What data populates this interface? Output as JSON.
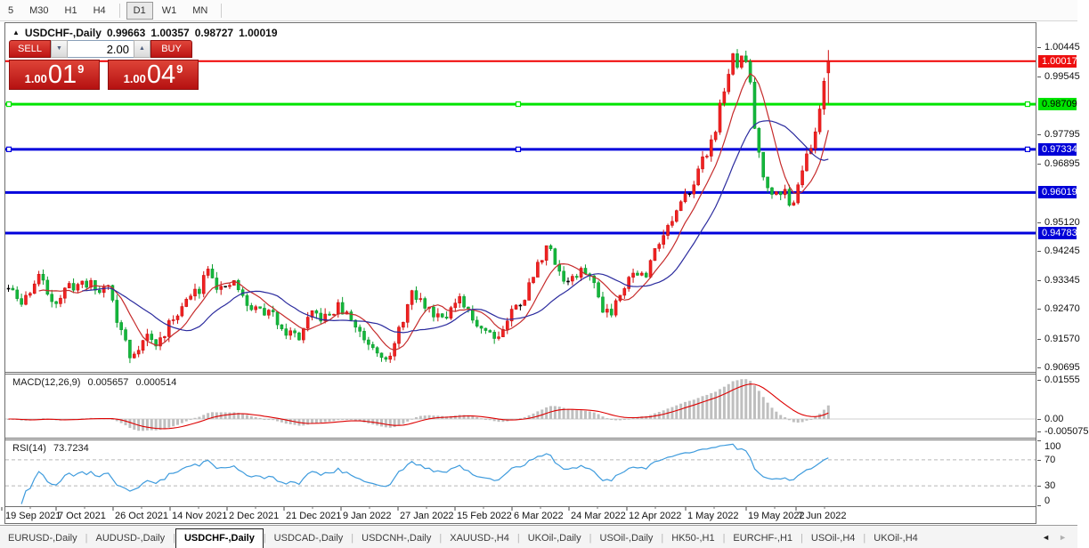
{
  "toolbar": {
    "group1": [
      "5",
      "M30",
      "H1",
      "H4"
    ],
    "group2": [
      "D1",
      "W1",
      "MN"
    ],
    "active": "D1"
  },
  "chart": {
    "title": {
      "collapse_icon": "▲",
      "symbol": "USDCHF-,Daily",
      "open": "0.99663",
      "high": "1.00357",
      "low": "0.98727",
      "close": "1.00019"
    },
    "trade_panel": {
      "sell_label": "SELL",
      "buy_label": "BUY",
      "volume": "2.00",
      "spinner_down": "▼",
      "spinner_up": "▲",
      "sell_price": {
        "prefix": "1.00",
        "big": "01",
        "sup": "9"
      },
      "buy_price": {
        "prefix": "1.00",
        "big": "04",
        "sup": "9"
      }
    }
  },
  "price_scale": {
    "ticks": [
      {
        "label": "1.00445",
        "price": 1.00445
      },
      {
        "label": "0.99545",
        "price": 0.99545
      },
      {
        "label": "0.97795",
        "price": 0.97795
      },
      {
        "label": "0.96895",
        "price": 0.96895
      },
      {
        "label": "0.95120",
        "price": 0.9512
      },
      {
        "label": "0.94245",
        "price": 0.94245
      },
      {
        "label": "0.93345",
        "price": 0.93345
      },
      {
        "label": "0.92470",
        "price": 0.9247
      },
      {
        "label": "0.91570",
        "price": 0.9157
      },
      {
        "label": "0.90695",
        "price": 0.90695
      }
    ],
    "tags": [
      {
        "label": "1.00017",
        "price": 1.00017,
        "bg": "#ee0f0f",
        "fg": "#ffffff"
      },
      {
        "label": "0.98709",
        "price": 0.98709,
        "bg": "#00e400",
        "fg": "#000000"
      },
      {
        "label": "0.97334",
        "price": 0.97334,
        "bg": "#0000d8",
        "fg": "#ffffff"
      },
      {
        "label": "0.96019",
        "price": 0.96019,
        "bg": "#0000d8",
        "fg": "#ffffff"
      },
      {
        "label": "0.94783",
        "price": 0.94783,
        "bg": "#0000d8",
        "fg": "#ffffff"
      }
    ]
  },
  "macd_panel": {
    "name": "MACD(12,26,9)",
    "value": "0.005657",
    "signal_value": "0.000514"
  },
  "rsi_panel": {
    "name": "RSI(14)",
    "value": "73.7234"
  },
  "tabs": {
    "items": [
      "EURUSD-,Daily",
      "AUDUSD-,Daily",
      "USDCHF-,Daily",
      "USDCAD-,Daily",
      "USDCNH-,Daily",
      "XAUUSD-,H4",
      "UKOil-,Daily",
      "USOil-,Daily",
      "HK50-,H1",
      "EURCHF-,H1",
      "USOil-,H4",
      "UKOil-,H4"
    ],
    "active": "USDCHF-,Daily",
    "prev_arrow": "◄",
    "next_arrow": "►"
  },
  "colors": {
    "bull_fill": "#f12222",
    "bull_stroke": "#cf0f0f",
    "bear_fill": "#14b83c",
    "bear_stroke": "#0c9c2e",
    "doji": "#000000",
    "ma_fast": "#c62b2b",
    "ma_slow": "#2b2b9e",
    "level_red": "#f00000",
    "level_green": "#00e400",
    "level_blue": "#0000dc",
    "macd_hist": "#bfbfbf",
    "macd_signal": "#dd0000",
    "rsi_line": "#3e9bdd",
    "rsi_level": "#b8b8b8",
    "separator": "#6e6e6e"
  },
  "chart_data": {
    "type": "candlestick",
    "symbol": "USDCHF-",
    "timeframe": "Daily",
    "current_bar": {
      "open": 0.99663,
      "high": 1.00357,
      "low": 0.98727,
      "close": 1.00019
    },
    "bar_count": 190,
    "ylim": [
      0.90586,
      1.01122
    ],
    "y_ticks": [
      1.00445,
      0.99545,
      0.97795,
      0.96895,
      0.9512,
      0.94245,
      0.93345,
      0.9247,
      0.9157,
      0.90695
    ],
    "close_path_anchors": [
      [
        0,
        0.931
      ],
      [
        3,
        0.9262
      ],
      [
        5,
        0.9305
      ],
      [
        7,
        0.935
      ],
      [
        9,
        0.9298
      ],
      [
        11,
        0.927
      ],
      [
        14,
        0.9315
      ],
      [
        18,
        0.9328
      ],
      [
        21,
        0.93
      ],
      [
        23,
        0.933
      ],
      [
        25,
        0.921
      ],
      [
        27,
        0.915
      ],
      [
        28,
        0.9098
      ],
      [
        30,
        0.9135
      ],
      [
        32,
        0.9167
      ],
      [
        34,
        0.9135
      ],
      [
        36,
        0.9175
      ],
      [
        39,
        0.924
      ],
      [
        42,
        0.9285
      ],
      [
        44,
        0.931
      ],
      [
        46,
        0.9385
      ],
      [
        48,
        0.932
      ],
      [
        50,
        0.93
      ],
      [
        52,
        0.9333
      ],
      [
        55,
        0.9255
      ],
      [
        58,
        0.9245
      ],
      [
        61,
        0.9228
      ],
      [
        64,
        0.918
      ],
      [
        67,
        0.9162
      ],
      [
        70,
        0.923
      ],
      [
        73,
        0.9218
      ],
      [
        76,
        0.9253
      ],
      [
        79,
        0.9215
      ],
      [
        82,
        0.9158
      ],
      [
        85,
        0.9125
      ],
      [
        88,
        0.9095
      ],
      [
        91,
        0.922
      ],
      [
        93,
        0.929
      ],
      [
        95,
        0.927
      ],
      [
        98,
        0.9235
      ],
      [
        101,
        0.9235
      ],
      [
        104,
        0.927
      ],
      [
        107,
        0.9215
      ],
      [
        110,
        0.9185
      ],
      [
        113,
        0.9165
      ],
      [
        116,
        0.924
      ],
      [
        119,
        0.9285
      ],
      [
        122,
        0.938
      ],
      [
        124,
        0.944
      ],
      [
        126,
        0.9395
      ],
      [
        128,
        0.9335
      ],
      [
        131,
        0.9345
      ],
      [
        133,
        0.9368
      ],
      [
        135,
        0.932
      ],
      [
        137,
        0.9253
      ],
      [
        139,
        0.924
      ],
      [
        141,
        0.9302
      ],
      [
        143,
        0.9345
      ],
      [
        145,
        0.936
      ],
      [
        147,
        0.934
      ],
      [
        149,
        0.944
      ],
      [
        152,
        0.9495
      ],
      [
        155,
        0.956
      ],
      [
        158,
        0.964
      ],
      [
        161,
        0.9725
      ],
      [
        163,
        0.98
      ],
      [
        165,
        0.992
      ],
      [
        167,
        1.001
      ],
      [
        168,
        0.998
      ],
      [
        169,
        1.0025
      ],
      [
        170,
        0.999
      ],
      [
        171,
        0.994
      ],
      [
        172,
        0.98
      ],
      [
        174,
        0.966
      ],
      [
        176,
        0.959
      ],
      [
        177,
        0.962
      ],
      [
        179,
        0.96
      ],
      [
        180,
        0.956
      ],
      [
        181,
        0.9585
      ],
      [
        183,
        0.968
      ],
      [
        185,
        0.9735
      ],
      [
        186,
        0.979
      ],
      [
        187,
        0.986
      ],
      [
        188,
        0.995
      ],
      [
        189,
        1.0002
      ]
    ],
    "levels": [
      {
        "price": 1.00017,
        "color": "#f00000",
        "width": 2,
        "selected": false
      },
      {
        "price": 0.98709,
        "color": "#00e400",
        "width": 3,
        "selected": true
      },
      {
        "price": 0.97334,
        "color": "#0000dc",
        "width": 3,
        "selected": true
      },
      {
        "price": 0.96019,
        "color": "#0000dc",
        "width": 3,
        "selected": false
      },
      {
        "price": 0.94783,
        "color": "#0000dc",
        "width": 3,
        "selected": false
      }
    ],
    "moving_averages": [
      {
        "period": 8,
        "color": "#c62b2b"
      },
      {
        "period": 18,
        "color": "#2b2b9e"
      }
    ],
    "candle_gen": {
      "seed": 11,
      "noise": 0.0016,
      "wick": 0.0018,
      "doji_threshold": 0.0002
    },
    "x_ticks": [
      {
        "label": "19 Sep 2021",
        "x": 2
      },
      {
        "label": "7 Oct 2021",
        "x": 63
      },
      {
        "label": "26 Oct 2021",
        "x": 127
      },
      {
        "label": "14 Nov 2021",
        "x": 191
      },
      {
        "label": "2 Dec 2021",
        "x": 255
      },
      {
        "label": "21 Dec 2021",
        "x": 319
      },
      {
        "label": "9 Jan 2022",
        "x": 383
      },
      {
        "label": "27 Jan 2022",
        "x": 447
      },
      {
        "label": "15 Feb 2022",
        "x": 511
      },
      {
        "label": "6 Mar 2022",
        "x": 575
      },
      {
        "label": "24 Mar 2022",
        "x": 639
      },
      {
        "label": "12 Apr 2022",
        "x": 704
      },
      {
        "label": "1 May 2022",
        "x": 770
      },
      {
        "label": "19 May 2022",
        "x": 838
      },
      {
        "label": "7 Jun 2022",
        "x": 894
      }
    ],
    "sub_charts": {
      "macd": {
        "type": "histogram+line",
        "params": [
          12,
          26,
          9
        ],
        "current_macd": 0.005657,
        "current_signal": 0.000514,
        "ylim": [
          -0.00707,
          0.01767
        ],
        "scale_ticks": [
          {
            "label": "0.01555",
            "v": 0.01555
          },
          {
            "label": "0.00",
            "v": 0
          },
          {
            "label": "-0.005075",
            "v": -0.005075
          }
        ]
      },
      "rsi": {
        "type": "line",
        "period": 14,
        "current": 73.7234,
        "ylim": [
          0,
          100
        ],
        "levels": [
          70,
          30
        ],
        "scale_ticks": [
          {
            "label": "100",
            "v": 100
          },
          {
            "label": "70",
            "v": 70
          },
          {
            "label": "30",
            "v": 30
          },
          {
            "label": "0",
            "v": 0
          }
        ]
      }
    }
  }
}
